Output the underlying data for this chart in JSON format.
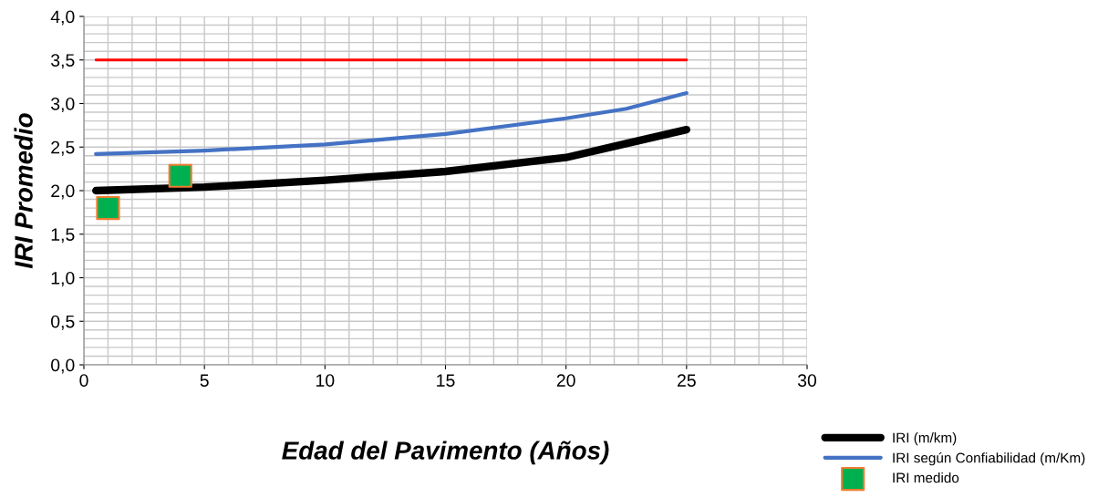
{
  "chart_data": {
    "type": "line",
    "xlabel": "Edad del Pavimento (Años)",
    "ylabel": "IRI Promedio",
    "xlim": [
      0,
      30
    ],
    "xticks": [
      0,
      5,
      10,
      15,
      20,
      25,
      30
    ],
    "ylim": [
      0,
      4
    ],
    "yticks": [
      {
        "value": 0,
        "label": "0,0"
      },
      {
        "value": 0.5,
        "label": "0,5"
      },
      {
        "value": 1,
        "label": "1,0"
      },
      {
        "value": 1.5,
        "label": "1,5"
      },
      {
        "value": 2,
        "label": "2,0"
      },
      {
        "value": 2.5,
        "label": "2,5"
      },
      {
        "value": 3,
        "label": "3,0"
      },
      {
        "value": 3.5,
        "label": "3,5"
      },
      {
        "value": 4,
        "label": "4,0"
      }
    ],
    "grid": true,
    "legend": "bottom right",
    "series": [
      {
        "name": "IRI (m/km)",
        "color": "#000000",
        "x": [
          0.5,
          5,
          10,
          15,
          20,
          22.5,
          25
        ],
        "values": [
          2.0,
          2.04,
          2.12,
          2.22,
          2.38,
          2.54,
          2.7
        ]
      },
      {
        "name": "IRI según Confiabilidad (m/Km)",
        "color": "#4472c4",
        "x": [
          0.5,
          5,
          10,
          15,
          20,
          22.5,
          25
        ],
        "values": [
          2.42,
          2.46,
          2.53,
          2.65,
          2.83,
          2.94,
          3.12
        ]
      },
      {
        "name": "IRI medido",
        "type": "scatter",
        "marker": "square",
        "color": "#00b050",
        "x": [
          1,
          4
        ],
        "values": [
          1.8,
          2.17
        ]
      },
      {
        "color": "#ff0000",
        "x": [
          0.5,
          25
        ],
        "values": [
          3.5,
          3.5
        ]
      }
    ]
  }
}
